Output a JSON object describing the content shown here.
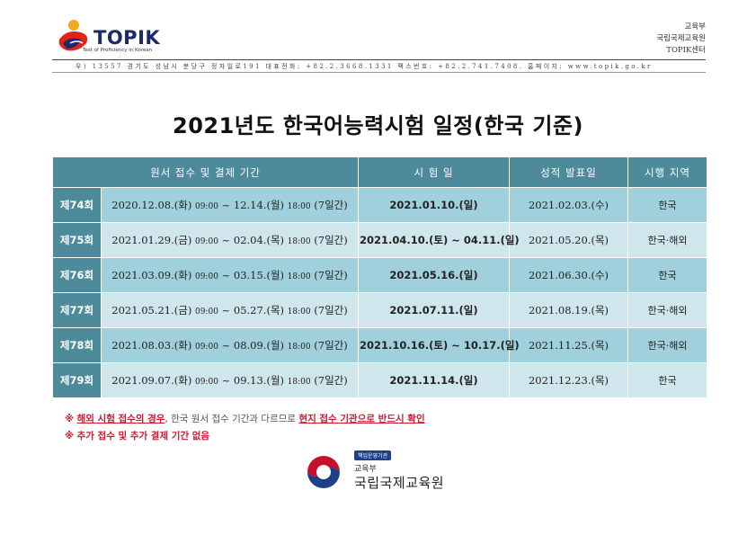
{
  "header": {
    "logo_text": "TOPIK",
    "logo_subtext": "Test of Proficiency in Korean",
    "org_lines": [
      "교육부",
      "국립국제교육원",
      "TOPIK센터"
    ],
    "address": "우) 13557  경기도 성남시 분당구 정자일로191  대표전화: +82.2.3668.1331  팩스번호: +82.2.741.7408.  홈페이지: www.topik.go.kr"
  },
  "title": "2021년도 한국어능력시험 일정(한국 기준)",
  "table": {
    "headers": [
      "원서 접수 및 결제 기간",
      "시 험 일",
      "성적 발표일",
      "시행 지역"
    ],
    "rows": [
      {
        "round": "제74회",
        "start": "2020.12.08.(화)",
        "start_time": "09:00",
        "end": "12.14.(월)",
        "end_time": "18:00",
        "days": "(7일간)",
        "exam": "2021.01.10.(일)",
        "result": "2021.02.03.(수)",
        "region": "한국"
      },
      {
        "round": "제75회",
        "start": "2021.01.29.(금)",
        "start_time": "09:00",
        "end": "02.04.(목)",
        "end_time": "18:00",
        "days": "(7일간)",
        "exam": "2021.04.10.(토) ~ 04.11.(일)",
        "result": "2021.05.20.(목)",
        "region": "한국·해외"
      },
      {
        "round": "제76회",
        "start": "2021.03.09.(화)",
        "start_time": "09:00",
        "end": "03.15.(월)",
        "end_time": "18:00",
        "days": "(7일간)",
        "exam": "2021.05.16.(일)",
        "result": "2021.06.30.(수)",
        "region": "한국"
      },
      {
        "round": "제77회",
        "start": "2021.05.21.(금)",
        "start_time": "09:00",
        "end": "05.27.(목)",
        "end_time": "18:00",
        "days": "(7일간)",
        "exam": "2021.07.11.(일)",
        "result": "2021.08.19.(목)",
        "region": "한국·해외"
      },
      {
        "round": "제78회",
        "start": "2021.08.03.(화)",
        "start_time": "09:00",
        "end": "08.09.(월)",
        "end_time": "18:00",
        "days": "(7일간)",
        "exam": "2021.10.16.(토) ~ 10.17.(일)",
        "result": "2021.11.25.(목)",
        "region": "한국·해외"
      },
      {
        "round": "제79회",
        "start": "2021.09.07.(화)",
        "start_time": "09:00",
        "end": "09.13.(월)",
        "end_time": "18:00",
        "days": "(7일간)",
        "exam": "2021.11.14.(일)",
        "result": "2021.12.23.(목)",
        "region": "한국"
      }
    ]
  },
  "notes": {
    "mark": "※",
    "line1_part1": "해외 시험 접수의 경우",
    "line1_part2": ", 한국 원서 접수 기간과 다르므로 ",
    "line1_part3": "현지 접수 기관으로 반드시 확인",
    "line2": "추가 접수 및 추가 결제 기간 없음"
  },
  "footer": {
    "badge": "책임운영기관",
    "ministry": "교육부",
    "institute": "국립국제교육원"
  },
  "colors": {
    "header_bg": "#4d8b9b",
    "row_dark": "#9fd0dc",
    "row_light": "#cfe6ec",
    "note_red": "#d0182e"
  }
}
